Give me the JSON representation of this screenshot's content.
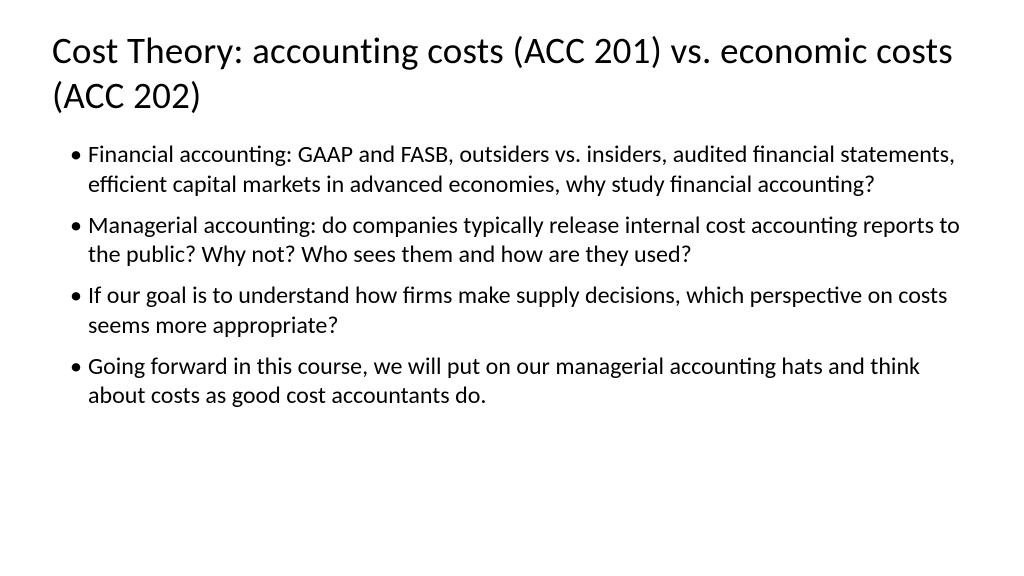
{
  "slide": {
    "title": "Cost Theory: accounting costs (ACC 201) vs. economic costs (ACC 202)",
    "bullets": [
      "Financial accounting:  GAAP and FASB, outsiders vs. insiders, audited financial statements, efficient capital markets in advanced economies, why study financial accounting?",
      "Managerial accounting:  do companies typically release internal cost accounting reports to the public?  Why not?  Who sees them and how are they used?",
      "If our goal is to understand how firms make supply decisions, which perspective on costs seems more appropriate?",
      "Going forward in this course, we will put on our managerial accounting hats and think about costs as good cost accountants do."
    ],
    "background_color": "#ffffff",
    "title_color": "#000000",
    "body_color": "#000000",
    "title_fontsize": 37,
    "body_fontsize": 24
  }
}
